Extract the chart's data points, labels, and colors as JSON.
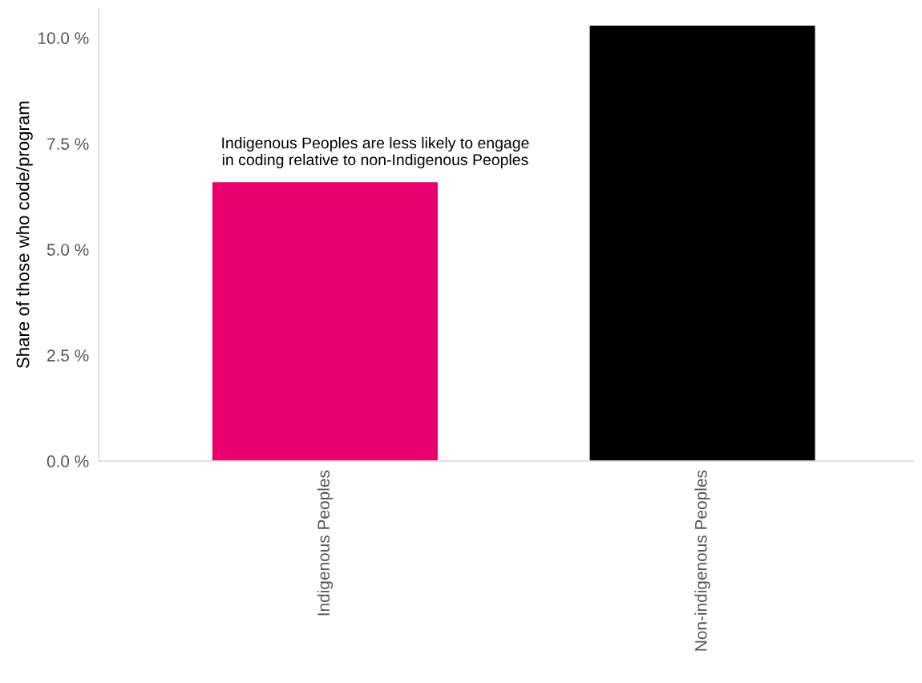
{
  "chart_data": {
    "type": "bar",
    "ylabel": "Share of those who code/program",
    "categories": [
      "Indigenous Peoples",
      "Non-indigenous Peoples"
    ],
    "values": [
      6.6,
      10.3
    ],
    "colors": [
      "#e8006f",
      "#000000"
    ],
    "ylim": [
      0,
      10.7
    ],
    "yticks": [
      {
        "value": 0,
        "label": "0.0 %"
      },
      {
        "value": 2.5,
        "label": "2.5 %"
      },
      {
        "value": 5,
        "label": "5.0 %"
      },
      {
        "value": 7.5,
        "label": "7.5 %"
      },
      {
        "value": 10,
        "label": "10.0 %"
      }
    ],
    "annotations": [
      {
        "text": "Indigenous Peoples are less likely to engage\nin coding relative to non-Indigenous Peoples",
        "x": "Indigenous Peoples",
        "y": 6.6
      }
    ],
    "grid": false,
    "legend": false
  }
}
